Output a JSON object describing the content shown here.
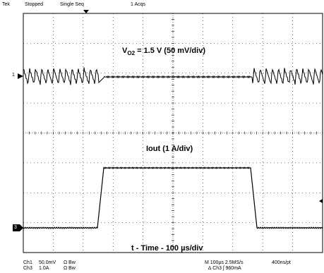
{
  "header": {
    "brand": "Tek",
    "run_state": "Stopped",
    "acq_mode": "Single Seq",
    "acq_count": "1 Acqs"
  },
  "annotations": {
    "v_prefix": "V",
    "v_subscript": "O2",
    "v_rest": " = 1.5 V  (50 mV/div)",
    "iout": "Iout (1 A/div)",
    "time_prefix": "t - Time - 100 ",
    "time_unit": "µs/div"
  },
  "channel_markers": {
    "ch1": "1",
    "ch3": "3"
  },
  "footer": {
    "ch1_label": "Ch1",
    "ch1_scale": "50.0mV",
    "ch1_coupling": "Ω Bw",
    "ch3_label": "Ch3",
    "ch3_scale": "1.0A",
    "ch3_coupling": "Ω Bw",
    "timebase": "M 100µs 2.5MS/s",
    "sample_interval": "400ns/pt",
    "trigger": "∆ Ch3  ʃ  960mA"
  },
  "colors": {
    "trace": "#000000",
    "grid": "#000000",
    "background": "#ffffff"
  }
}
